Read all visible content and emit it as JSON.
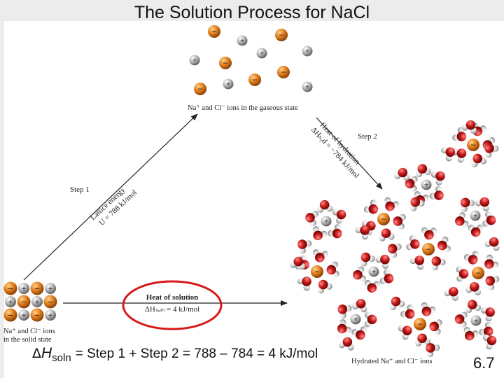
{
  "title": "The Solution Process for NaCl",
  "labels": {
    "gaseous": "Na⁺ and Cl⁻ ions in the gaseous state",
    "solid_line1": "Na⁺ and Cl⁻ ions",
    "solid_line2": "in the solid state",
    "hydrated": "Hydrated Na⁺ and Cl⁻ ions",
    "step1": "Step 1",
    "step2": "Step 2",
    "lattice_line1": "Lattice energy",
    "lattice_line2": "U = 788 kJ/mol",
    "hydration_line1": "Heat of hydration",
    "hydration_line2": "ΔHₕᵧd = −784 kJ/mol",
    "heat_solution_line1": "Heat of solution",
    "heat_solution_line2": "ΔHₛₒₗₙ = 4 kJ/mol"
  },
  "equation": {
    "delta": "Δ",
    "h": "H",
    "sub": "soln",
    "text": "= Step 1 + Step 2 = 788 – 784 = 4 kJ/mol"
  },
  "slide_number": "6.7",
  "colors": {
    "sodium": "#e07b1a",
    "chloride": "#9a9a9a",
    "oxygen": "#c41818",
    "hydrogen": "#d2d2d2",
    "highlight": "#d81818"
  },
  "icon_names": [
    "sodium-ion-icon",
    "chloride-ion-icon",
    "water-molecule-icon"
  ]
}
